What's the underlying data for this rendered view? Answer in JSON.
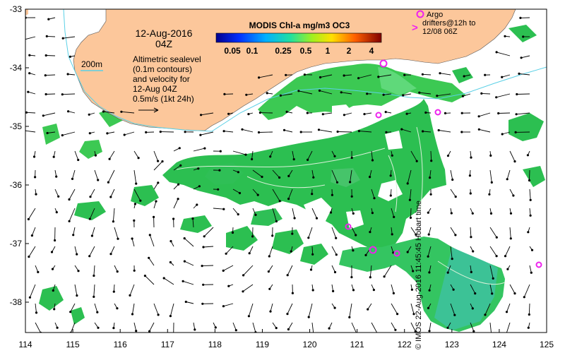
{
  "title": {
    "date": "12-Aug-2016",
    "time": "04Z"
  },
  "colorbar": {
    "title": "MODIS Chl-a mg/m3 OC3",
    "ticks": [
      "0.05",
      "0.1",
      "0.25",
      "0.5",
      "1",
      "2",
      "4"
    ]
  },
  "contour_legend": {
    "label": "200m"
  },
  "sealevel_note": {
    "lines": [
      "Altimetric sealevel",
      "(0.1m contours)",
      "and velocity for",
      "12-Aug 04Z",
      "0.5m/s (1kt 24h)"
    ]
  },
  "argo_note": {
    "marker_symbol": ">",
    "lines": [
      "Argo",
      "drifters@12h to",
      "12/08 06Z"
    ]
  },
  "axes": {
    "x_ticks": [
      "114",
      "115",
      "116",
      "117",
      "118",
      "119",
      "120",
      "121",
      "122",
      "123",
      "124",
      "125"
    ],
    "y_ticks": [
      "-33",
      "-34",
      "-35",
      "-36",
      "-37",
      "-38"
    ]
  },
  "credit": "© IMOS 22-Aug-2016 11:45:45 Hobart time",
  "colors": {
    "land": "#fcc79b",
    "chl_main": "#2cbf51",
    "chl_light": "#5fd97a",
    "chl_teal": "#3cc296",
    "argo": "#ee22ee",
    "contour_200m": "#5ad0e6"
  }
}
